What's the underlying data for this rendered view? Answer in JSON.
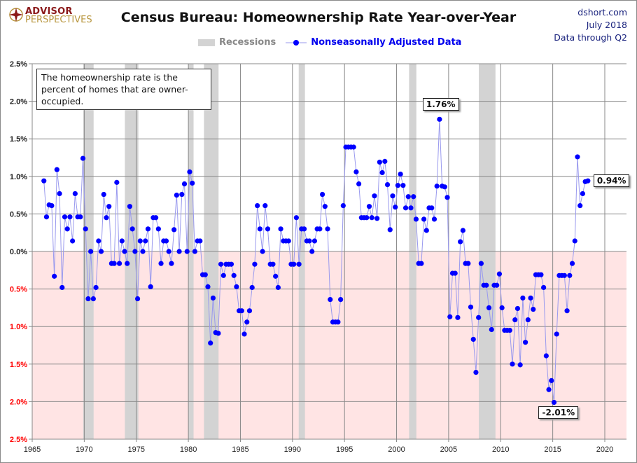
{
  "header": {
    "title": "Census Bureau: Homeownership Rate Year-over-Year",
    "source_lines": [
      "dshort.com",
      "July 2018",
      "Data through Q2"
    ],
    "logo": {
      "line1": "ADVISOR",
      "line2": "PERSPECTIVES"
    }
  },
  "annotation": "The homeownership rate is the percent of homes that are owner-occupied.",
  "colors": {
    "series": "#0000ff",
    "line": "#9999ee",
    "recession": "#d3d3d3",
    "negative_zone": "#ffe4e4",
    "negative_labels": "#ff0000",
    "logo_red": "#8b1a1a",
    "logo_gold": "#b8963e"
  },
  "chart_data": {
    "type": "scatter",
    "title": "Census Bureau: Homeownership Rate Year-over-Year",
    "xlabel": "",
    "ylabel": "",
    "xlim": [
      1965,
      2022
    ],
    "ylim": [
      -2.5,
      2.5
    ],
    "grid": true,
    "legend_placement": "top-center",
    "legend": [
      "Recessions",
      "Nonseasonally Adjusted Data"
    ],
    "x_ticks": [
      "1965",
      "1970",
      "1975",
      "1980",
      "1985",
      "1990",
      "1995",
      "2000",
      "2005",
      "2010",
      "2015",
      "2020"
    ],
    "y_ticks": [
      "2.5%",
      "2.0%",
      "1.5%",
      "1.0%",
      "0.5%",
      "0.0%",
      "0.5%",
      "1.0%",
      "1.5%",
      "2.0%",
      "2.5%"
    ],
    "y_tick_values": [
      2.5,
      2.0,
      1.5,
      1.0,
      0.5,
      0,
      -0.5,
      -1.0,
      -1.5,
      -2.0,
      -2.5
    ],
    "recessions": [
      [
        1969.9,
        1970.9
      ],
      [
        1973.9,
        1975.2
      ],
      [
        1980.0,
        1980.5
      ],
      [
        1981.5,
        1982.9
      ],
      [
        1990.6,
        1991.2
      ],
      [
        2001.2,
        2001.9
      ],
      [
        2007.9,
        2009.5
      ]
    ],
    "series": [
      {
        "name": "Nonseasonally Adjusted Data",
        "start": "1966 Q1",
        "frequency": "quarterly",
        "values": [
          0.94,
          0.46,
          0.62,
          0.61,
          -0.33,
          1.09,
          0.77,
          -0.48,
          0.46,
          0.3,
          0.46,
          0.14,
          0.77,
          0.46,
          0.46,
          1.24,
          0.3,
          -0.63,
          0.0,
          -0.63,
          -0.48,
          0.14,
          0.0,
          0.76,
          0.45,
          0.6,
          -0.16,
          -0.16,
          0.92,
          -0.16,
          0.14,
          0.0,
          -0.16,
          0.6,
          0.3,
          0.0,
          -0.63,
          0.14,
          0.0,
          0.14,
          0.3,
          -0.47,
          0.45,
          0.45,
          0.3,
          -0.16,
          0.14,
          0.14,
          0.0,
          -0.16,
          0.29,
          0.75,
          0.0,
          0.76,
          0.9,
          0.0,
          1.06,
          0.91,
          0.0,
          0.14,
          0.14,
          -0.31,
          -0.31,
          -0.47,
          -1.22,
          -0.62,
          -1.08,
          -1.09,
          -0.17,
          -0.32,
          -0.17,
          -0.17,
          -0.17,
          -0.32,
          -0.47,
          -0.79,
          -0.79,
          -1.1,
          -0.94,
          -0.79,
          -0.48,
          -0.17,
          0.61,
          0.3,
          0.0,
          0.61,
          0.3,
          -0.17,
          -0.17,
          -0.33,
          -0.48,
          0.3,
          0.14,
          0.14,
          0.14,
          -0.17,
          -0.17,
          0.45,
          -0.17,
          0.3,
          0.3,
          0.14,
          0.14,
          0.0,
          0.14,
          0.3,
          0.3,
          0.76,
          0.6,
          0.3,
          -0.64,
          -0.94,
          -0.94,
          -0.94,
          -0.64,
          0.61,
          1.39,
          1.39,
          1.39,
          1.39,
          1.06,
          0.9,
          0.45,
          0.45,
          0.45,
          0.6,
          0.45,
          0.74,
          0.44,
          1.19,
          1.05,
          1.2,
          0.89,
          0.29,
          0.74,
          0.59,
          0.88,
          1.03,
          0.88,
          0.58,
          0.73,
          0.58,
          0.73,
          0.43,
          -0.16,
          -0.16,
          0.43,
          0.28,
          0.58,
          0.58,
          0.43,
          0.87,
          1.76,
          0.87,
          0.86,
          0.72,
          -0.87,
          -0.29,
          -0.29,
          -0.88,
          0.13,
          0.28,
          -0.16,
          -0.16,
          -0.74,
          -1.17,
          -1.61,
          -0.88,
          -0.16,
          -0.45,
          -0.45,
          -0.75,
          -1.04,
          -0.45,
          -0.45,
          -0.3,
          -0.75,
          -1.05,
          -1.05,
          -1.05,
          -1.5,
          -0.91,
          -0.76,
          -1.51,
          -0.62,
          -1.21,
          -0.91,
          -0.62,
          -0.77,
          -0.31,
          -0.31,
          -0.31,
          -0.48,
          -1.39,
          -1.84,
          -1.72,
          -2.01,
          -1.1,
          -0.32,
          -0.32,
          -0.32,
          -0.79,
          -0.32,
          -0.16,
          0.14,
          1.26,
          0.61,
          0.77,
          0.93,
          0.94
        ]
      }
    ],
    "annotations": [
      {
        "label": "1.76%",
        "value": 1.76
      },
      {
        "label": "-2.01%",
        "value": -2.01
      },
      {
        "label": "0.94%",
        "value": 0.94
      }
    ]
  }
}
